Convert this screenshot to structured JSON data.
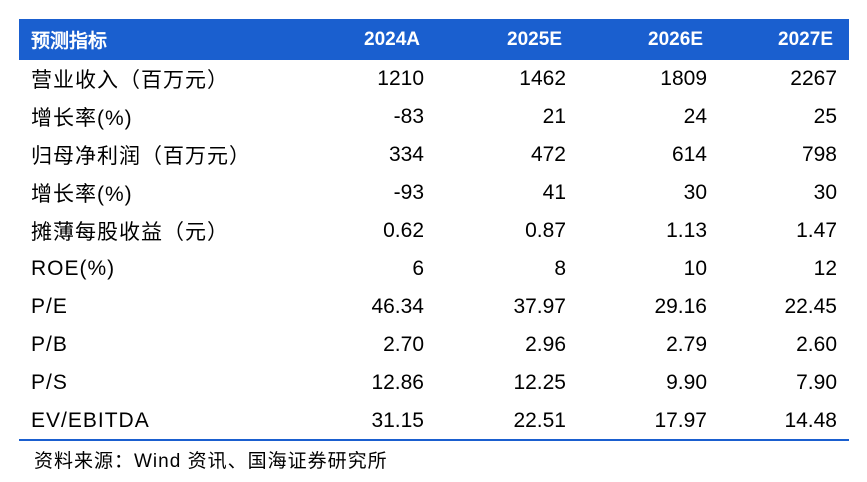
{
  "table": {
    "headers": [
      "预测指标",
      "2024A",
      "2025E",
      "2026E",
      "2027E"
    ],
    "rows": [
      {
        "label": "营业收入（百万元）",
        "values": [
          "1210",
          "1462",
          "1809",
          "2267"
        ]
      },
      {
        "label": "增长率(%)",
        "values": [
          "-83",
          "21",
          "24",
          "25"
        ]
      },
      {
        "label": "归母净利润（百万元）",
        "values": [
          "334",
          "472",
          "614",
          "798"
        ]
      },
      {
        "label": "增长率(%)",
        "values": [
          "-93",
          "41",
          "30",
          "30"
        ]
      },
      {
        "label": "摊薄每股收益（元）",
        "values": [
          "0.62",
          "0.87",
          "1.13",
          "1.47"
        ]
      },
      {
        "label": "ROE(%)",
        "values": [
          "6",
          "8",
          "10",
          "12"
        ]
      },
      {
        "label": "P/E",
        "values": [
          "46.34",
          "37.97",
          "29.16",
          "22.45"
        ]
      },
      {
        "label": "P/B",
        "values": [
          "2.70",
          "2.96",
          "2.79",
          "2.60"
        ]
      },
      {
        "label": "P/S",
        "values": [
          "12.86",
          "12.25",
          "9.90",
          "7.90"
        ]
      },
      {
        "label": "EV/EBITDA",
        "values": [
          "31.15",
          "22.51",
          "17.97",
          "14.48"
        ]
      }
    ]
  },
  "source": "资料来源：Wind 资讯、国海证券研究所",
  "colors": {
    "header_bg": "#1a5fcf",
    "header_text": "#ffffff",
    "rule": "#1a5fcf"
  }
}
